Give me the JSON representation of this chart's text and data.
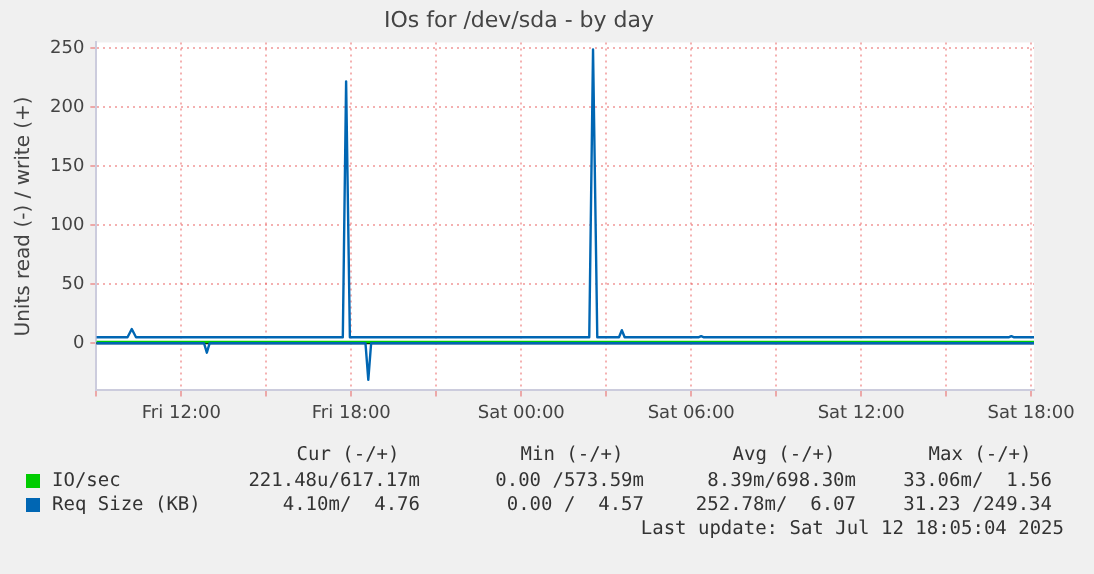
{
  "chart_data": {
    "type": "line",
    "title": "IOs for /dev/sda - by day",
    "ylabel": "Units read (-) / write (+)",
    "xlim": [
      "2025-07-11T09:00",
      "2025-07-12T18:06"
    ],
    "xticks": [
      {
        "value": "2025-07-11T09:00",
        "label": null
      },
      {
        "value": "2025-07-11T12:00",
        "label": "Fri 12:00"
      },
      {
        "value": "2025-07-11T15:00",
        "label": null
      },
      {
        "value": "2025-07-11T18:00",
        "label": "Fri 18:00"
      },
      {
        "value": "2025-07-11T21:00",
        "label": null
      },
      {
        "value": "2025-07-12T00:00",
        "label": "Sat 00:00"
      },
      {
        "value": "2025-07-12T03:00",
        "label": null
      },
      {
        "value": "2025-07-12T06:00",
        "label": "Sat 06:00"
      },
      {
        "value": "2025-07-12T09:00",
        "label": null
      },
      {
        "value": "2025-07-12T12:00",
        "label": "Sat 12:00"
      },
      {
        "value": "2025-07-12T15:00",
        "label": null
      },
      {
        "value": "2025-07-12T18:00",
        "label": "Sat 18:00"
      }
    ],
    "ylim": [
      -40,
      255
    ],
    "yticks": [
      0,
      50,
      100,
      150,
      200,
      250
    ],
    "grid": true,
    "legend": "bottom",
    "marker": "none",
    "line_style": "solid",
    "series": [
      {
        "name": "IO/sec",
        "color": "#00cc00",
        "x": [
          "2025-07-11T09:00",
          "2025-07-12T18:06"
        ],
        "values": [
          1,
          1
        ]
      },
      {
        "name": "Req Size (KB)",
        "color": "#0066b3",
        "x": [
          "2025-07-11T09:00",
          "2025-07-11T10:06",
          "2025-07-11T10:15",
          "2025-07-11T10:24",
          "2025-07-11T17:42",
          "2025-07-11T17:49",
          "2025-07-11T17:57",
          "2025-07-12T02:24",
          "2025-07-12T02:32",
          "2025-07-12T02:41",
          "2025-07-12T03:27",
          "2025-07-12T03:33",
          "2025-07-12T03:39",
          "2025-07-12T06:15",
          "2025-07-12T06:21",
          "2025-07-12T06:27",
          "2025-07-12T17:12",
          "2025-07-12T17:18",
          "2025-07-12T17:24",
          "2025-07-12T18:06"
        ],
        "values": [
          5,
          5,
          12,
          5,
          5,
          222,
          5,
          5,
          249,
          5,
          5,
          11,
          5,
          5,
          6,
          5,
          5,
          6,
          5,
          5
        ]
      },
      {
        "color": "#0066b3",
        "x": [
          "2025-07-11T09:00",
          "2025-07-11T12:48",
          "2025-07-11T12:54",
          "2025-07-11T13:00",
          "2025-07-11T18:30",
          "2025-07-11T18:36",
          "2025-07-11T18:42",
          "2025-07-12T18:06"
        ],
        "values": [
          0,
          0,
          -8,
          0,
          0,
          -31,
          0,
          0
        ]
      }
    ],
    "annotations": [
      "Cur (-/+)",
      "Min (-/+)",
      "Avg (-/+)",
      "Max (-/+)",
      "221.48u/617.17m",
      "0.00 /573.59m",
      "8.39m/698.30m",
      "33.06m/  1.56",
      "4.10m/  4.76",
      "0.00 /  4.57",
      "252.78m/  6.07",
      "31.23 /249.34",
      "Last update: Sat Jul 12 18:05:04 2025"
    ]
  }
}
